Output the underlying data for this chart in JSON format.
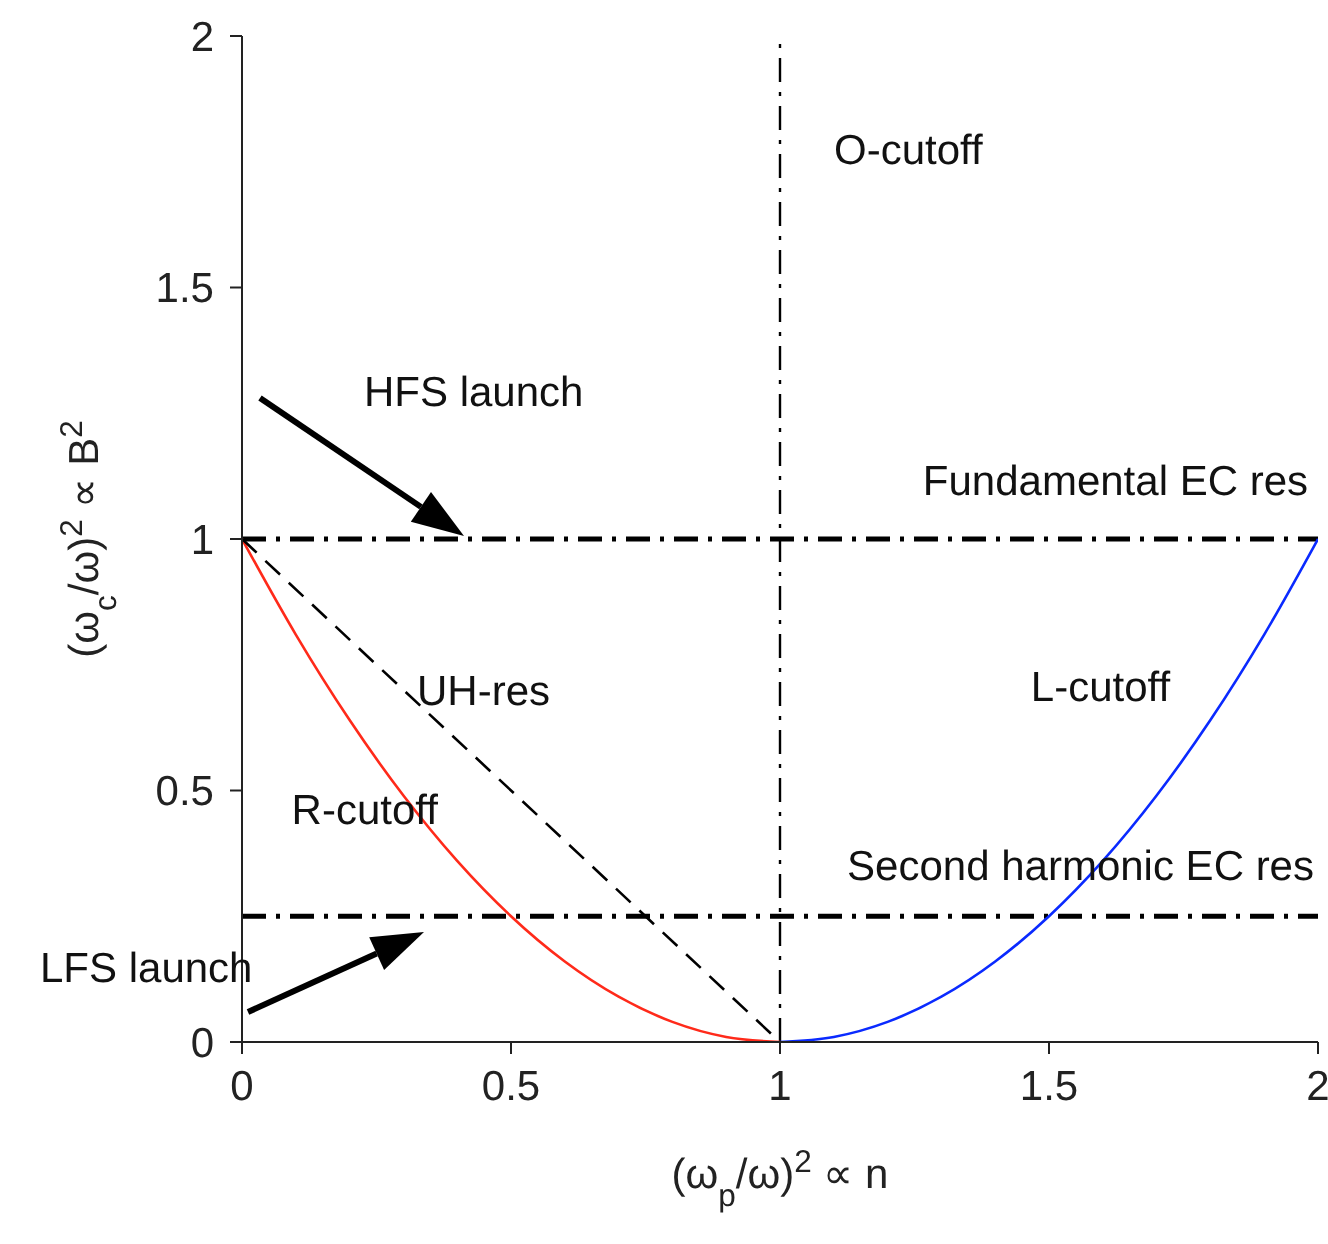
{
  "chart_data": {
    "type": "line",
    "xlabel": "(ω$_{p}$/ω)$^{2}$ ∝ n",
    "ylabel": "(ω$_{c}$/ω)$^{2}$ ∝ B$^{2}$",
    "xlim": [
      0,
      2
    ],
    "ylim": [
      0,
      2
    ],
    "xticks": [
      0,
      0.5,
      1,
      1.5,
      2
    ],
    "yticks": [
      0,
      0.5,
      1,
      1.5,
      2
    ],
    "grid": false,
    "marker": "none",
    "series": [
      {
        "name": "R-cutoff",
        "color": "#ff2a1a",
        "line_style": "solid",
        "x": [
          0,
          0.1,
          0.2,
          0.3,
          0.4,
          0.5,
          0.6,
          0.7,
          0.8,
          0.9,
          1
        ],
        "values": [
          1,
          0.81,
          0.64,
          0.49,
          0.36,
          0.25,
          0.16,
          0.09,
          0.04,
          0.01,
          0
        ]
      },
      {
        "name": "UH-res",
        "color": "#000000",
        "line_style": "dashed",
        "x": [
          0,
          0.5,
          1
        ],
        "values": [
          1,
          0.5,
          0
        ]
      },
      {
        "name": "L-cutoff",
        "color": "#0a2aff",
        "line_style": "solid",
        "x": [
          1,
          1.1,
          1.2,
          1.3,
          1.4,
          1.5,
          1.6,
          1.7,
          1.8,
          1.9,
          2
        ],
        "values": [
          0,
          0.01,
          0.04,
          0.09,
          0.16,
          0.25,
          0.36,
          0.49,
          0.64,
          0.81,
          1
        ]
      }
    ],
    "ref_lines": [
      {
        "axis": "x",
        "value": 1,
        "label": "O-cutoff",
        "color": "#000000",
        "line_style": "dashdot"
      },
      {
        "axis": "y",
        "value": 1,
        "label": "Fundamental EC res",
        "color": "#000000",
        "line_style": "dashdot"
      },
      {
        "axis": "y",
        "value": 0.25,
        "label": "Second harmonic EC res",
        "color": "#000000",
        "line_style": "dashdot"
      }
    ],
    "annotations": [
      "HFS launch",
      "LFS launch"
    ]
  }
}
